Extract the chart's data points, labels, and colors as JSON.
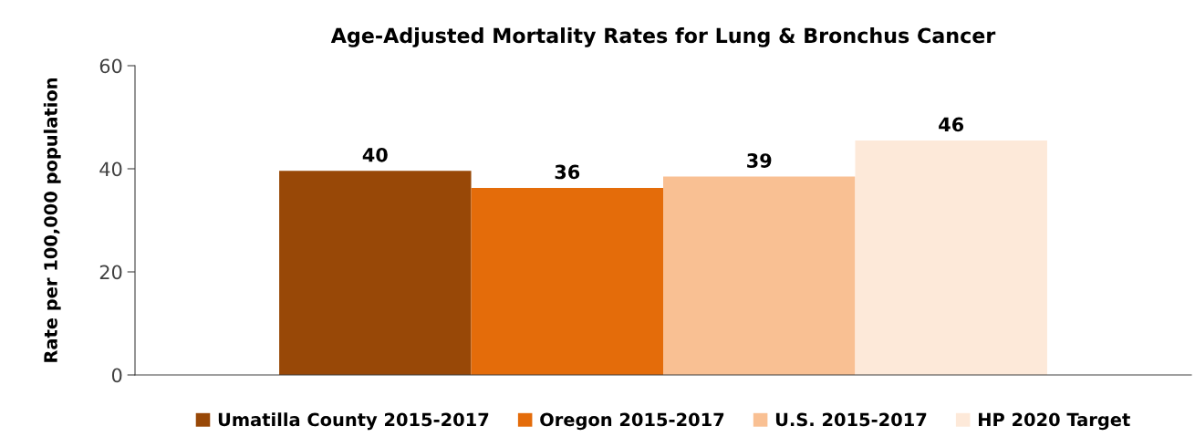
{
  "chart_data": {
    "type": "bar",
    "title": "Age-Adjusted Mortality Rates for Lung & Bronchus Cancer",
    "ylabel": "Rate per 100,000 population",
    "categories": [
      null
    ],
    "series": [
      {
        "name": "Umatilla County 2015-2017",
        "color": "#984807",
        "values": [
          39.6
        ],
        "value_labels": [
          "40"
        ]
      },
      {
        "name": "Oregon 2015-2017",
        "color": "#e46c0a",
        "values": [
          36.3
        ],
        "value_labels": [
          "36"
        ]
      },
      {
        "name": "U.S. 2015-2017",
        "color": "#f9c093",
        "values": [
          38.5
        ],
        "value_labels": [
          "39"
        ]
      },
      {
        "name": "HP 2020 Target",
        "color": "#fde9d9",
        "values": [
          45.5
        ],
        "value_labels": [
          "46"
        ]
      }
    ],
    "ylim": [
      0,
      60
    ],
    "yticks": [
      0,
      20,
      40,
      60
    ],
    "grid": false,
    "legend": "bottom"
  }
}
